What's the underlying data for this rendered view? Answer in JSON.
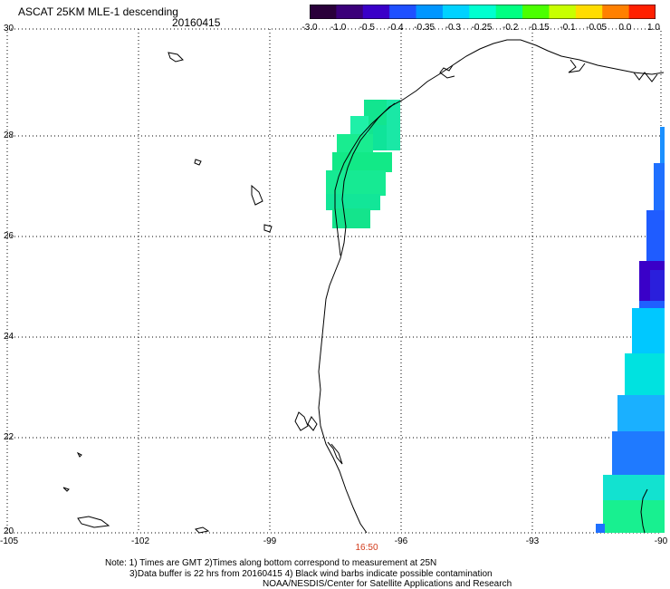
{
  "header": {
    "title": "ASCAT 25KM MLE-1 descending",
    "date": "20160415"
  },
  "colorbar": {
    "ticks": [
      "-3.0",
      "-1.0",
      "-0.5",
      "-0.4",
      "-0.35",
      "-0.3",
      "-0.25",
      "-0.2",
      "-0.15",
      "-0.1",
      "-0.05",
      "0.0",
      "1.0"
    ],
    "colors": [
      "#2a003a",
      "#3b007a",
      "#3a00c8",
      "#1f50ff",
      "#0096ff",
      "#00d2ff",
      "#00ffd0",
      "#00ff82",
      "#4bff00",
      "#c8ff00",
      "#ffdc00",
      "#ff8000",
      "#ff2000"
    ]
  },
  "map": {
    "lat_labels": [
      "30",
      "28",
      "26",
      "24",
      "22",
      "20"
    ],
    "lon_labels": [
      "-105",
      "-102",
      "-99",
      "-96",
      "-93",
      "-90"
    ],
    "time_label": "16:50",
    "lat_range": [
      20,
      30
    ],
    "lon_range": [
      -105,
      -90
    ]
  },
  "footer": {
    "line1": "Note: 1) Times are GMT 2)Times along bottom correspond to measurement at 25N",
    "line2": "3)Data buffer is 22 hrs from 20160415 4) Black wind barbs indicate possible contamination",
    "line3": "NOAA/NESDIS/Center for Satellite Applications and Research"
  }
}
